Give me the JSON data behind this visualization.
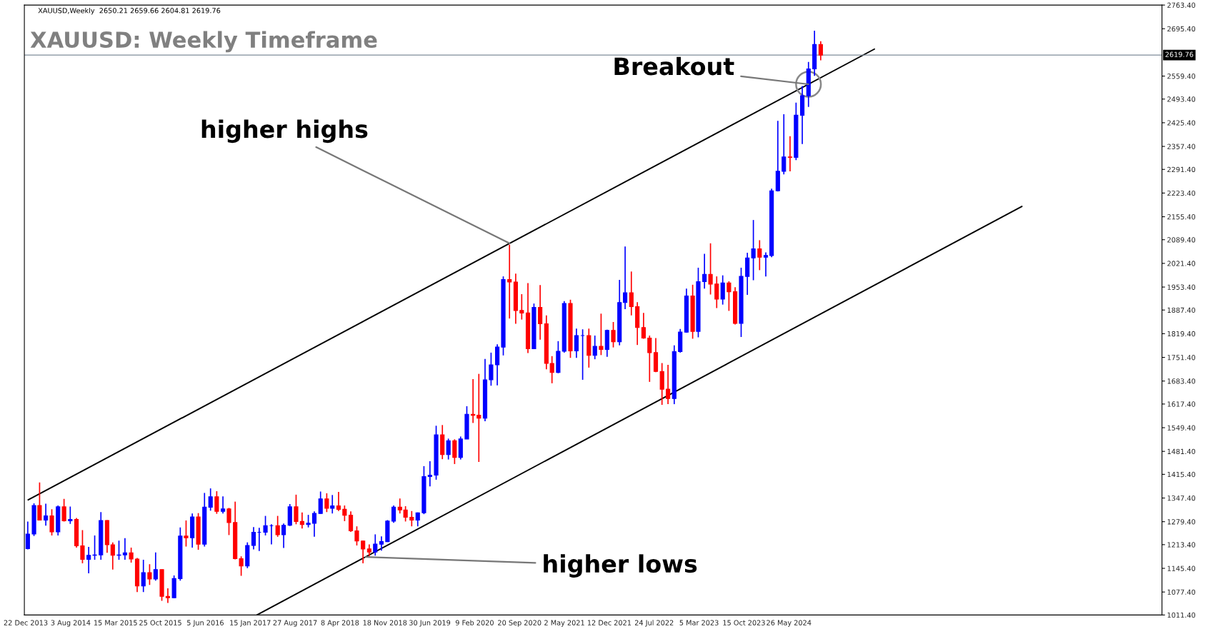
{
  "chart_data": {
    "type": "candlestick",
    "title": "XAUUSD: Weekly Timeframe",
    "subtitle": "XAUUSD,Weekly  2650.21 2659.66 2604.81 2619.76",
    "x": [
      "2014-01",
      "2014-02",
      "2014-03",
      "2014-04",
      "2014-05",
      "2014-06",
      "2014-07",
      "2014-08",
      "2014-09",
      "2014-10",
      "2014-11",
      "2014-12",
      "2015-01",
      "2015-02",
      "2015-03",
      "2015-04",
      "2015-05",
      "2015-06",
      "2015-07",
      "2015-08",
      "2015-09",
      "2015-10",
      "2015-11",
      "2015-12",
      "2016-01",
      "2016-02",
      "2016-03",
      "2016-04",
      "2016-05",
      "2016-06",
      "2016-07",
      "2016-08",
      "2016-09",
      "2016-10",
      "2016-11",
      "2016-12",
      "2017-01",
      "2017-02",
      "2017-03",
      "2017-04",
      "2017-05",
      "2017-06",
      "2017-07",
      "2017-08",
      "2017-09",
      "2017-10",
      "2017-11",
      "2017-12",
      "2018-01",
      "2018-02",
      "2018-03",
      "2018-04",
      "2018-05",
      "2018-06",
      "2018-07",
      "2018-08",
      "2018-09",
      "2018-10",
      "2018-11",
      "2018-12",
      "2019-01",
      "2019-02",
      "2019-03",
      "2019-04",
      "2019-05",
      "2019-06",
      "2019-07",
      "2019-08",
      "2019-09",
      "2019-10",
      "2019-11",
      "2019-12",
      "2020-01",
      "2020-02",
      "2020-03",
      "2020-04",
      "2020-05",
      "2020-06",
      "2020-07",
      "2020-08",
      "2020-09",
      "2020-10",
      "2020-11",
      "2020-12",
      "2021-01",
      "2021-02",
      "2021-03",
      "2021-04",
      "2021-05",
      "2021-06",
      "2021-07",
      "2021-08",
      "2021-09",
      "2021-10",
      "2021-11",
      "2021-12",
      "2022-01",
      "2022-02",
      "2022-03",
      "2022-04",
      "2022-05",
      "2022-06",
      "2022-07",
      "2022-08",
      "2022-09",
      "2022-10",
      "2022-11",
      "2022-12",
      "2023-01",
      "2023-02",
      "2023-03",
      "2023-04",
      "2023-05",
      "2023-06",
      "2023-07",
      "2023-08",
      "2023-09",
      "2023-10",
      "2023-11",
      "2023-12",
      "2024-01",
      "2024-02",
      "2024-03",
      "2024-04",
      "2024-05",
      "2024-06",
      "2024-07",
      "2024-08",
      "2024-09",
      "2024-10",
      "2024-11"
    ],
    "ohlc": [
      [
        1202,
        1280,
        1200,
        1244
      ],
      [
        1244,
        1332,
        1238,
        1326
      ],
      [
        1326,
        1392,
        1283,
        1284
      ],
      [
        1284,
        1331,
        1268,
        1296
      ],
      [
        1296,
        1315,
        1240,
        1250
      ],
      [
        1250,
        1326,
        1240,
        1322
      ],
      [
        1322,
        1345,
        1280,
        1282
      ],
      [
        1282,
        1323,
        1273,
        1286
      ],
      [
        1286,
        1290,
        1205,
        1210
      ],
      [
        1210,
        1255,
        1160,
        1171
      ],
      [
        1171,
        1207,
        1131,
        1183
      ],
      [
        1183,
        1240,
        1170,
        1184
      ],
      [
        1184,
        1307,
        1170,
        1283
      ],
      [
        1283,
        1284,
        1190,
        1213
      ],
      [
        1213,
        1220,
        1142,
        1183
      ],
      [
        1183,
        1225,
        1170,
        1184
      ],
      [
        1184,
        1232,
        1170,
        1190
      ],
      [
        1190,
        1205,
        1162,
        1172
      ],
      [
        1172,
        1175,
        1077,
        1095
      ],
      [
        1095,
        1170,
        1077,
        1133
      ],
      [
        1133,
        1157,
        1098,
        1115
      ],
      [
        1115,
        1191,
        1110,
        1142
      ],
      [
        1142,
        1142,
        1052,
        1065
      ],
      [
        1065,
        1088,
        1046,
        1061
      ],
      [
        1061,
        1125,
        1060,
        1116
      ],
      [
        1116,
        1263,
        1110,
        1238
      ],
      [
        1238,
        1283,
        1208,
        1233
      ],
      [
        1233,
        1303,
        1205,
        1293
      ],
      [
        1293,
        1304,
        1199,
        1215
      ],
      [
        1215,
        1362,
        1208,
        1321
      ],
      [
        1321,
        1375,
        1311,
        1351
      ],
      [
        1351,
        1367,
        1302,
        1309
      ],
      [
        1309,
        1352,
        1303,
        1316
      ],
      [
        1316,
        1319,
        1241,
        1277
      ],
      [
        1277,
        1337,
        1171,
        1173
      ],
      [
        1173,
        1180,
        1124,
        1152
      ],
      [
        1152,
        1220,
        1146,
        1211
      ],
      [
        1211,
        1264,
        1200,
        1249
      ],
      [
        1249,
        1262,
        1195,
        1249
      ],
      [
        1249,
        1296,
        1240,
        1268
      ],
      [
        1268,
        1272,
        1214,
        1268
      ],
      [
        1268,
        1296,
        1236,
        1242
      ],
      [
        1242,
        1274,
        1204,
        1269
      ],
      [
        1269,
        1330,
        1267,
        1322
      ],
      [
        1322,
        1357,
        1272,
        1280
      ],
      [
        1280,
        1306,
        1260,
        1271
      ],
      [
        1271,
        1299,
        1263,
        1275
      ],
      [
        1275,
        1309,
        1236,
        1303
      ],
      [
        1303,
        1366,
        1302,
        1345
      ],
      [
        1345,
        1361,
        1307,
        1318
      ],
      [
        1318,
        1356,
        1303,
        1325
      ],
      [
        1325,
        1365,
        1310,
        1315
      ],
      [
        1315,
        1326,
        1281,
        1298
      ],
      [
        1298,
        1309,
        1250,
        1253
      ],
      [
        1253,
        1266,
        1211,
        1224
      ],
      [
        1224,
        1225,
        1160,
        1201
      ],
      [
        1201,
        1214,
        1180,
        1192
      ],
      [
        1192,
        1243,
        1182,
        1215
      ],
      [
        1215,
        1237,
        1196,
        1222
      ],
      [
        1222,
        1284,
        1221,
        1281
      ],
      [
        1281,
        1326,
        1276,
        1321
      ],
      [
        1321,
        1346,
        1303,
        1313
      ],
      [
        1313,
        1324,
        1280,
        1292
      ],
      [
        1292,
        1310,
        1266,
        1284
      ],
      [
        1284,
        1306,
        1266,
        1305
      ],
      [
        1305,
        1439,
        1301,
        1409
      ],
      [
        1409,
        1453,
        1381,
        1413
      ],
      [
        1413,
        1555,
        1400,
        1529
      ],
      [
        1529,
        1557,
        1459,
        1472
      ],
      [
        1472,
        1518,
        1458,
        1512
      ],
      [
        1512,
        1516,
        1445,
        1464
      ],
      [
        1464,
        1524,
        1458,
        1517
      ],
      [
        1517,
        1611,
        1517,
        1588
      ],
      [
        1588,
        1689,
        1563,
        1585
      ],
      [
        1585,
        1704,
        1451,
        1577
      ],
      [
        1577,
        1747,
        1568,
        1687
      ],
      [
        1687,
        1765,
        1670,
        1730
      ],
      [
        1730,
        1789,
        1671,
        1781
      ],
      [
        1781,
        1984,
        1757,
        1975
      ],
      [
        1975,
        2075,
        1863,
        1968
      ],
      [
        1968,
        1992,
        1848,
        1886
      ],
      [
        1886,
        1933,
        1860,
        1879
      ],
      [
        1879,
        1965,
        1764,
        1776
      ],
      [
        1776,
        1906,
        1775,
        1895
      ],
      [
        1895,
        1959,
        1802,
        1848
      ],
      [
        1848,
        1872,
        1717,
        1734
      ],
      [
        1734,
        1755,
        1677,
        1708
      ],
      [
        1708,
        1798,
        1706,
        1769
      ],
      [
        1769,
        1913,
        1765,
        1906
      ],
      [
        1906,
        1917,
        1750,
        1770
      ],
      [
        1770,
        1834,
        1750,
        1814
      ],
      [
        1814,
        1832,
        1687,
        1814
      ],
      [
        1814,
        1834,
        1722,
        1757
      ],
      [
        1757,
        1814,
        1746,
        1783
      ],
      [
        1783,
        1877,
        1758,
        1774
      ],
      [
        1774,
        1831,
        1753,
        1829
      ],
      [
        1829,
        1853,
        1780,
        1796
      ],
      [
        1796,
        1974,
        1786,
        1909
      ],
      [
        1909,
        2070,
        1890,
        1937
      ],
      [
        1937,
        1998,
        1872,
        1897
      ],
      [
        1897,
        1910,
        1787,
        1837
      ],
      [
        1837,
        1879,
        1805,
        1807
      ],
      [
        1807,
        1814,
        1681,
        1765
      ],
      [
        1765,
        1807,
        1709,
        1711
      ],
      [
        1711,
        1735,
        1615,
        1660
      ],
      [
        1660,
        1730,
        1617,
        1633
      ],
      [
        1633,
        1786,
        1617,
        1768
      ],
      [
        1768,
        1833,
        1765,
        1824
      ],
      [
        1824,
        1949,
        1822,
        1928
      ],
      [
        1928,
        1960,
        1805,
        1826
      ],
      [
        1826,
        2009,
        1809,
        1969
      ],
      [
        1969,
        2049,
        1949,
        1990
      ],
      [
        1990,
        2079,
        1932,
        1962
      ],
      [
        1962,
        1984,
        1893,
        1919
      ],
      [
        1919,
        1987,
        1903,
        1965
      ],
      [
        1965,
        1970,
        1885,
        1940
      ],
      [
        1940,
        1953,
        1846,
        1849
      ],
      [
        1849,
        2009,
        1810,
        1984
      ],
      [
        1984,
        2052,
        1931,
        2037
      ],
      [
        2037,
        2146,
        1973,
        2063
      ],
      [
        2063,
        2088,
        2002,
        2039
      ],
      [
        2039,
        2053,
        1984,
        2044
      ],
      [
        2044,
        2236,
        2039,
        2230
      ],
      [
        2230,
        2431,
        2228,
        2286
      ],
      [
        2286,
        2450,
        2277,
        2327
      ],
      [
        2327,
        2387,
        2286,
        2326
      ],
      [
        2326,
        2483,
        2318,
        2447
      ],
      [
        2447,
        2531,
        2364,
        2503
      ],
      [
        2503,
        2600,
        2471,
        2580
      ],
      [
        2580,
        2690,
        2560,
        2650
      ],
      [
        2650.21,
        2659.66,
        2604.81,
        2619.76
      ]
    ],
    "colors": [
      "#0000ff",
      "#0000ff",
      "#ff0000",
      "#0000ff",
      "#ff0000",
      "#0000ff",
      "#ff0000",
      "#0000ff",
      "#ff0000",
      "#ff0000",
      "#0000ff",
      "#0000ff",
      "#0000ff",
      "#ff0000",
      "#ff0000",
      "#0000ff",
      "#0000ff",
      "#ff0000",
      "#ff0000",
      "#0000ff",
      "#ff0000",
      "#0000ff",
      "#ff0000",
      "#ff0000",
      "#0000ff",
      "#0000ff",
      "#ff0000",
      "#0000ff",
      "#ff0000",
      "#0000ff",
      "#0000ff",
      "#ff0000",
      "#0000ff",
      "#ff0000",
      "#ff0000",
      "#ff0000",
      "#0000ff",
      "#0000ff",
      "#0000ff",
      "#0000ff",
      "#0000ff",
      "#ff0000",
      "#0000ff",
      "#0000ff",
      "#ff0000",
      "#ff0000",
      "#0000ff",
      "#0000ff",
      "#0000ff",
      "#ff0000",
      "#0000ff",
      "#ff0000",
      "#ff0000",
      "#ff0000",
      "#ff0000",
      "#ff0000",
      "#ff0000",
      "#0000ff",
      "#0000ff",
      "#0000ff",
      "#0000ff",
      "#ff0000",
      "#ff0000",
      "#ff0000",
      "#0000ff",
      "#0000ff",
      "#0000ff",
      "#0000ff",
      "#ff0000",
      "#0000ff",
      "#ff0000",
      "#0000ff",
      "#0000ff",
      "#ff0000",
      "#ff0000",
      "#0000ff",
      "#0000ff",
      "#0000ff",
      "#0000ff",
      "#ff0000",
      "#ff0000",
      "#ff0000",
      "#ff0000",
      "#0000ff",
      "#ff0000",
      "#ff0000",
      "#ff0000",
      "#0000ff",
      "#0000ff",
      "#ff0000",
      "#0000ff",
      "#0000ff",
      "#ff0000",
      "#0000ff",
      "#ff0000",
      "#0000ff",
      "#ff0000",
      "#0000ff",
      "#0000ff",
      "#ff0000",
      "#ff0000",
      "#ff0000",
      "#ff0000",
      "#ff0000",
      "#ff0000",
      "#ff0000",
      "#0000ff",
      "#0000ff",
      "#0000ff",
      "#ff0000",
      "#0000ff",
      "#0000ff",
      "#ff0000",
      "#ff0000",
      "#0000ff",
      "#ff0000",
      "#ff0000",
      "#0000ff",
      "#0000ff",
      "#0000ff",
      "#ff0000",
      "#0000ff",
      "#0000ff",
      "#0000ff",
      "#0000ff",
      "#ff0000",
      "#0000ff",
      "#0000ff",
      "#0000ff",
      "#0000ff",
      "#ff0000"
    ],
    "series": [
      {
        "type": "line",
        "color": "#000000",
        "x": [
          "2014-01-03",
          "2025-07-27"
        ],
        "values": [
          1342,
          2637
        ]
      },
      {
        "type": "line",
        "color": "#000000",
        "x": [
          "2017-02-19",
          "2027-08-02"
        ],
        "values": [
          1012,
          2185
        ]
      }
    ],
    "ref_lines": [
      {
        "axis": "y",
        "value": 2619.76,
        "label": "2619.76",
        "color": "#7f8c99"
      }
    ],
    "annotations": [
      {
        "text": "higher highs",
        "x": "2020-08-01",
        "y": 2079
      },
      {
        "text": "Breakout",
        "x": "2024-09-01",
        "y": 2536
      },
      {
        "text": "higher lows",
        "x": "2018-08-15",
        "y": 1178
      }
    ],
    "xlim": [
      "2013-12-15",
      "2029-07-01"
    ],
    "xticks": [
      {
        "value": "2013-12-22",
        "label": "22 Dec 2013"
      },
      {
        "value": "2014-08-03",
        "label": "3 Aug 2014"
      },
      {
        "value": "2015-03-15",
        "label": "15 Mar 2015"
      },
      {
        "value": "2015-10-25",
        "label": "25 Oct 2015"
      },
      {
        "value": "2016-06-05",
        "label": "5 Jun 2016"
      },
      {
        "value": "2017-01-15",
        "label": "15 Jan 2017"
      },
      {
        "value": "2017-08-27",
        "label": "27 Aug 2017"
      },
      {
        "value": "2018-04-08",
        "label": "8 Apr 2018"
      },
      {
        "value": "2018-11-18",
        "label": "18 Nov 2018"
      },
      {
        "value": "2019-06-30",
        "label": "30 Jun 2019"
      },
      {
        "value": "2020-02-09",
        "label": "9 Feb 2020"
      },
      {
        "value": "2020-09-20",
        "label": "20 Sep 2020"
      },
      {
        "value": "2021-05-02",
        "label": "2 May 2021"
      },
      {
        "value": "2021-12-12",
        "label": "12 Dec 2021"
      },
      {
        "value": "2022-07-24",
        "label": "24 Jul 2022"
      },
      {
        "value": "2023-03-05",
        "label": "5 Mar 2023"
      },
      {
        "value": "2023-10-15",
        "label": "15 Oct 2023"
      },
      {
        "value": "2024-05-26",
        "label": "26 May 2024"
      }
    ],
    "ylim": [
      1011.4,
      2763.4
    ],
    "yticks": [
      {
        "value": 1011.4,
        "label": "1011.40"
      },
      {
        "value": 1077.4,
        "label": "1077.40"
      },
      {
        "value": 1145.4,
        "label": "1145.40"
      },
      {
        "value": 1213.4,
        "label": "1213.40"
      },
      {
        "value": 1279.4,
        "label": "1279.40"
      },
      {
        "value": 1347.4,
        "label": "1347.40"
      },
      {
        "value": 1415.4,
        "label": "1415.40"
      },
      {
        "value": 1481.4,
        "label": "1481.40"
      },
      {
        "value": 1549.4,
        "label": "1549.40"
      },
      {
        "value": 1617.4,
        "label": "1617.40"
      },
      {
        "value": 1683.4,
        "label": "1683.40"
      },
      {
        "value": 1751.4,
        "label": "1751.40"
      },
      {
        "value": 1819.4,
        "label": "1819.40"
      },
      {
        "value": 1887.4,
        "label": "1887.40"
      },
      {
        "value": 1953.4,
        "label": "1953.40"
      },
      {
        "value": 2021.4,
        "label": "2021.40"
      },
      {
        "value": 2089.4,
        "label": "2089.40"
      },
      {
        "value": 2155.4,
        "label": "2155.40"
      },
      {
        "value": 2223.4,
        "label": "2223.40"
      },
      {
        "value": 2291.4,
        "label": "2291.40"
      },
      {
        "value": 2357.4,
        "label": "2357.40"
      },
      {
        "value": 2425.4,
        "label": "2425.40"
      },
      {
        "value": 2493.4,
        "label": "2493.40"
      },
      {
        "value": 2559.4,
        "label": "2559.40"
      },
      {
        "value": 2695.4,
        "label": "2695.40"
      },
      {
        "value": 2763.4,
        "label": "2763.40"
      }
    ],
    "grid": false
  }
}
